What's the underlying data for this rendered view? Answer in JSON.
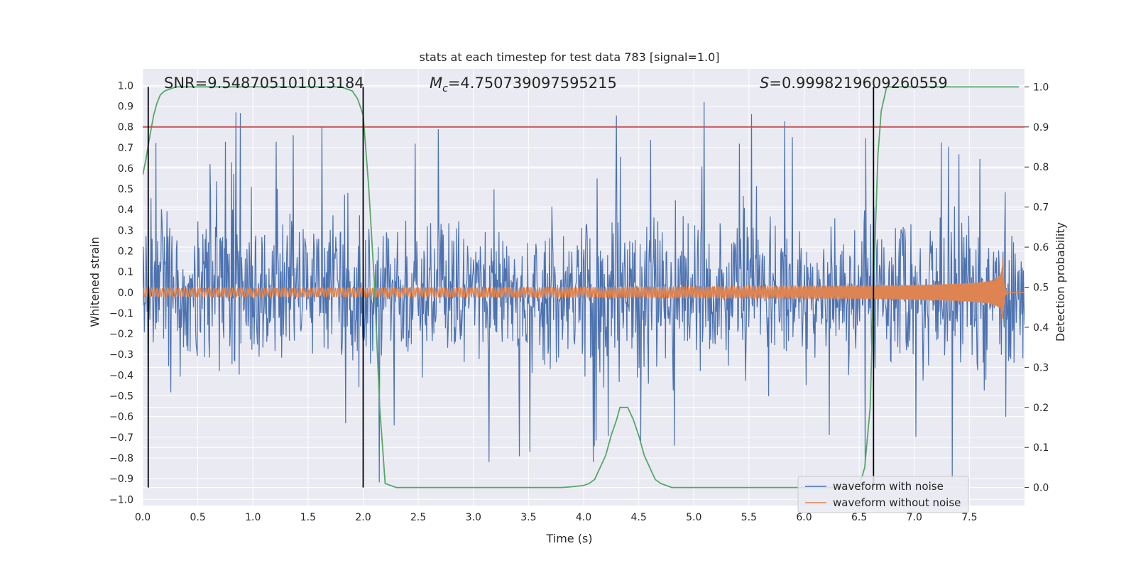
{
  "chart_data": {
    "type": "line",
    "title": "stats at each timestep for test data 783 [signal=1.0]",
    "xlabel": "Time (s)",
    "ylabel": "Whitened strain",
    "ylabel_right": "Detection probability",
    "xlim": [
      0.0,
      8.0
    ],
    "ylim": [
      -1.03,
      1.08
    ],
    "ylim_right": [
      -0.045,
      1.045
    ],
    "x_ticks": [
      0.0,
      0.5,
      1.0,
      1.5,
      2.0,
      2.5,
      3.0,
      3.5,
      4.0,
      4.5,
      5.0,
      5.5,
      6.0,
      6.5,
      7.0,
      7.5
    ],
    "x_tick_labels": [
      "0.0",
      "0.5",
      "1.0",
      "1.5",
      "2.0",
      "2.5",
      "3.0",
      "3.5",
      "4.0",
      "4.5",
      "5.0",
      "5.5",
      "6.0",
      "6.5",
      "7.0",
      "7.5"
    ],
    "y_ticks": [
      1.0,
      0.9,
      0.8,
      0.7,
      0.6,
      0.5,
      0.4,
      0.3,
      0.2,
      0.1,
      0.0,
      -0.1,
      -0.2,
      -0.3,
      -0.4,
      -0.5,
      -0.6,
      -0.7,
      -0.8,
      -0.9,
      -1.0
    ],
    "y_tick_labels": [
      "1.0",
      "0.9",
      "0.8",
      "0.7",
      "0.6",
      "0.5",
      "0.4",
      "0.3",
      "0.2",
      "0.1",
      "0.0",
      "−0.1",
      "−0.2",
      "−0.3",
      "−0.4",
      "−0.5",
      "−0.6",
      "−0.7",
      "−0.8",
      "−0.9",
      "−1.0"
    ],
    "y2_ticks": [
      1.0,
      0.9,
      0.8,
      0.7,
      0.6,
      0.5,
      0.4,
      0.3,
      0.2,
      0.1,
      0.0
    ],
    "y2_tick_labels": [
      "1.0",
      "0.9",
      "0.8",
      "0.7",
      "0.6",
      "0.5",
      "0.4",
      "0.3",
      "0.2",
      "0.1",
      "0.0"
    ],
    "annotations": {
      "snr": "SNR=9.548705101013184",
      "mc_symbol": "M",
      "mc_subscript": "c",
      "mc_value": "=4.750739097595215",
      "s_symbol": "S",
      "s_value": "=0.9998219609260559"
    },
    "threshold_line": {
      "axis": "right",
      "value": 0.9,
      "color": "#c44e52"
    },
    "vertical_lines": [
      0.05,
      2.0,
      6.63
    ],
    "series": [
      {
        "name": "waveform with noise",
        "color": "#4c72b0",
        "axis": "left",
        "kind": "noise",
        "amplitude_typical": 0.45,
        "amplitude_peak": 0.92,
        "x_range": [
          0.0,
          8.0
        ],
        "points": 1600,
        "seed": 783
      },
      {
        "name": "waveform without noise",
        "color": "#dd8452",
        "axis": "left",
        "kind": "chirp",
        "x_range": [
          0.0,
          8.0
        ],
        "merger_time": 7.8,
        "amplitude_start": 0.02,
        "amplitude_peak": 0.2,
        "frequency_start": 40
      },
      {
        "name": "detection probability",
        "color": "#55a868",
        "axis": "right",
        "kind": "line",
        "x": [
          0.0,
          0.03,
          0.06,
          0.1,
          0.13,
          0.16,
          0.2,
          0.25,
          0.3,
          0.4,
          0.6,
          1.0,
          1.5,
          1.8,
          1.9,
          1.95,
          2.0,
          2.05,
          2.1,
          2.15,
          2.2,
          2.3,
          3.0,
          3.5,
          3.8,
          3.9,
          4.0,
          4.05,
          4.1,
          4.15,
          4.2,
          4.25,
          4.3,
          4.33,
          4.4,
          4.45,
          4.5,
          4.55,
          4.6,
          4.65,
          4.7,
          4.8,
          5.0,
          5.5,
          6.0,
          6.4,
          6.5,
          6.55,
          6.6,
          6.63,
          6.67,
          6.7,
          6.75,
          6.8,
          7.0,
          7.5,
          7.95
        ],
        "y": [
          0.78,
          0.82,
          0.87,
          0.93,
          0.96,
          0.98,
          0.99,
          0.995,
          1.0,
          1.0,
          1.0,
          1.0,
          1.0,
          1.0,
          0.99,
          0.97,
          0.93,
          0.75,
          0.52,
          0.2,
          0.01,
          0.0,
          0.0,
          0.0,
          0.0,
          0.002,
          0.005,
          0.01,
          0.02,
          0.05,
          0.08,
          0.13,
          0.17,
          0.2,
          0.2,
          0.17,
          0.13,
          0.08,
          0.05,
          0.02,
          0.01,
          0.0,
          0.0,
          0.0,
          0.0,
          0.0,
          0.002,
          0.05,
          0.2,
          0.5,
          0.83,
          0.94,
          1.0,
          1.0,
          1.0,
          1.0,
          1.0
        ]
      }
    ],
    "legend": {
      "placement": "lower-right",
      "entries": [
        {
          "label": "waveform with noise",
          "color": "#4c72b0"
        },
        {
          "label": "waveform without noise",
          "color": "#dd8452"
        }
      ]
    },
    "style": {
      "background": "#eaeaf2",
      "grid_color": "#ffffff",
      "vline_color": "#000000"
    }
  }
}
